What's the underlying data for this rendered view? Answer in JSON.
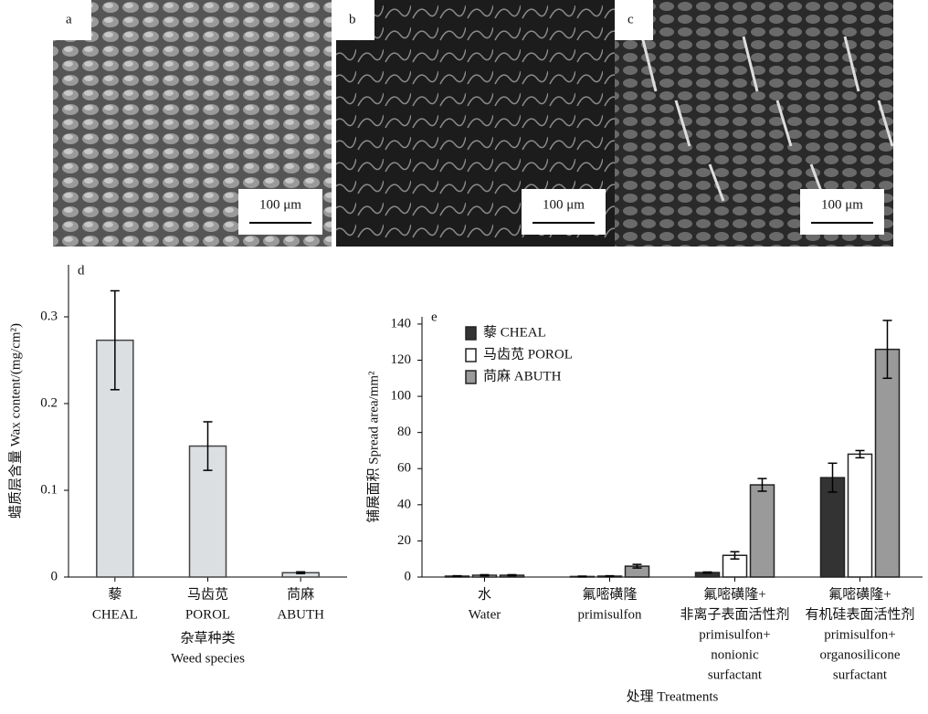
{
  "images": [
    {
      "label": "a",
      "scale_bar": "100 μm"
    },
    {
      "label": "b",
      "scale_bar": "100 μm"
    },
    {
      "label": "c",
      "scale_bar": "100 μm"
    }
  ],
  "chart_data": [
    {
      "type": "bar",
      "panel": "d",
      "categories": [
        [
          "藜",
          "CHEAL"
        ],
        [
          "马齿苋",
          "POROL"
        ],
        [
          "苘麻",
          "ABUTH"
        ]
      ],
      "values": [
        0.273,
        0.151,
        0.005
      ],
      "errors": [
        0.057,
        0.028,
        0.001
      ],
      "color": "#dcdfe2",
      "x_label": [
        "杂草种类",
        "Weed species"
      ],
      "y_label": "蜡质层含量 Wax content/(mg/cm²)",
      "ylim": [
        0,
        0.36
      ],
      "yticks": [
        {
          "value": 0,
          "label": "0"
        },
        0.1,
        0.2,
        0.3
      ]
    },
    {
      "type": "bar",
      "panel": "e",
      "categories": [
        [
          "水",
          "Water"
        ],
        [
          "氟嘧磺隆",
          "primisulfon"
        ],
        [
          "氟嘧磺隆+",
          "非离子表面活性剂",
          "primisulfon+",
          "nonionic",
          "surfactant"
        ],
        [
          "氟嘧磺隆+",
          "有机硅表面活性剂",
          "primisulfon+",
          "organosilicone",
          "surfactant"
        ]
      ],
      "series": [
        {
          "name": "藜 CHEAL",
          "color": "#333333",
          "values": [
            0.5,
            0.3,
            2.5,
            55
          ],
          "errors": [
            0.2,
            0.2,
            0.3,
            8
          ]
        },
        {
          "name": "马齿苋 POROL",
          "color": "#ffffff",
          "values": [
            1,
            0.5,
            12,
            68
          ],
          "errors": [
            0.3,
            0.2,
            2,
            2
          ]
        },
        {
          "name": "苘麻 ABUTH",
          "color": "#9a9a9a",
          "values": [
            1,
            6,
            51,
            126
          ],
          "errors": [
            0.3,
            1,
            3.5,
            16
          ]
        }
      ],
      "x_label": "处理 Treatments",
      "y_label": "铺展面积 Spread area/mm²",
      "legend": "upper-left",
      "ylim": [
        0,
        144
      ],
      "yticks": [
        0,
        20,
        40,
        60,
        80,
        100,
        120,
        140
      ]
    }
  ]
}
